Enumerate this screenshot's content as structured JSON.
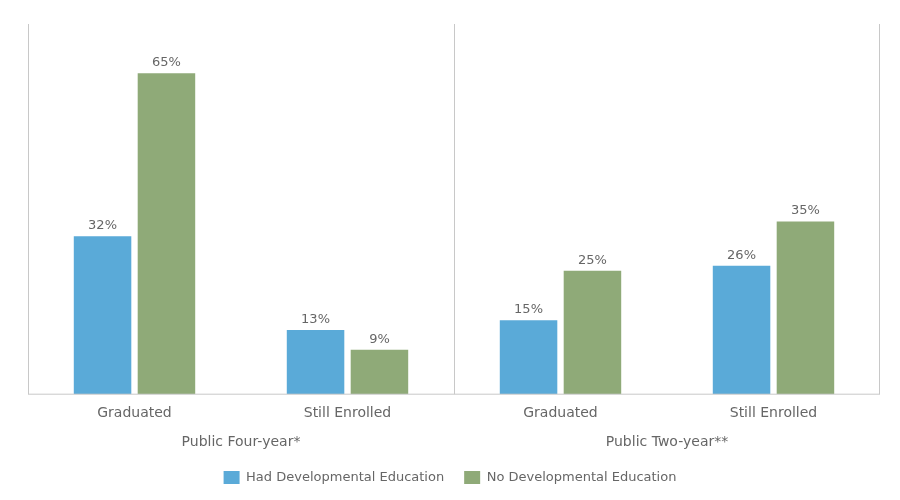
{
  "chart_data": {
    "type": "bar",
    "categories": [
      "Graduated",
      "Still Enrolled",
      "Graduated",
      "Still Enrolled"
    ],
    "category_groups": [
      "Public Four-year*",
      "Public Four-year*",
      "Public Two-year**",
      "Public Two-year**"
    ],
    "series": [
      {
        "name": "Had Developmental Education",
        "color": "#5aaad8",
        "values": [
          32,
          13,
          15,
          26
        ],
        "value_labels": [
          "32%",
          "13%",
          "15%",
          "26%"
        ]
      },
      {
        "name": "No Developmental Education",
        "color": "#8faa78",
        "values": [
          65,
          9,
          25,
          35
        ],
        "value_labels": [
          "65%",
          "9%",
          "25%",
          "35%"
        ]
      }
    ],
    "ylim": [
      0,
      75
    ],
    "grid": false,
    "legend": "bottom",
    "data_labels": true,
    "tick_labels": "x"
  }
}
